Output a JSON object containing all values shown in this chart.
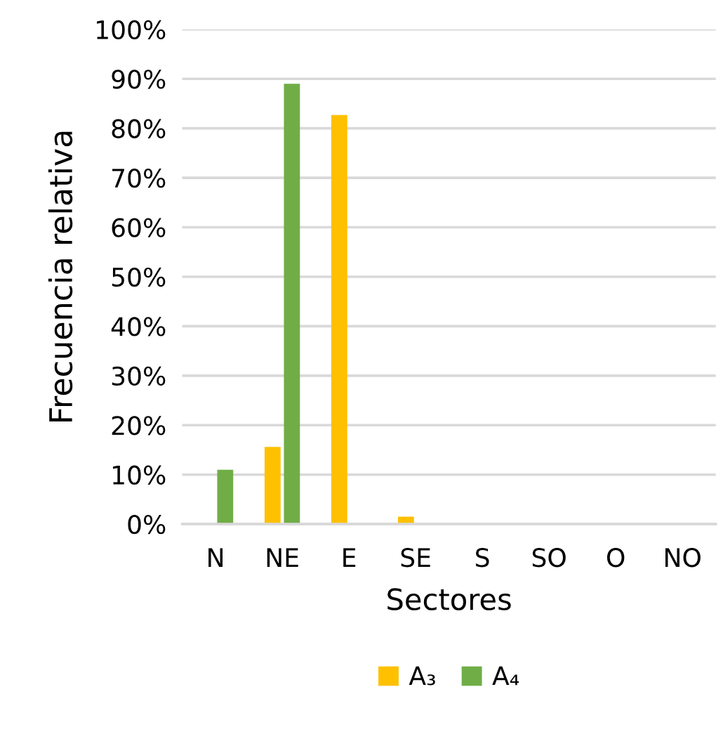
{
  "chart_data": {
    "type": "bar",
    "xlabel": "Sectores",
    "ylabel": "Frecuencia relativa",
    "categories": [
      "N",
      "NE",
      "E",
      "SE",
      "S",
      "SO",
      "O",
      "NO"
    ],
    "series": [
      {
        "name": "A₃",
        "color": "#ffc000",
        "values": [
          0,
          15.6,
          82.7,
          1.5,
          0,
          0,
          0,
          0
        ]
      },
      {
        "name": "A₄",
        "color": "#70ad47",
        "values": [
          11,
          89,
          0,
          0,
          0,
          0,
          0,
          0
        ]
      }
    ],
    "ylim": [
      0,
      100
    ],
    "yticks": [
      {
        "value": 0,
        "label": "0%"
      },
      {
        "value": 10,
        "label": "10%"
      },
      {
        "value": 20,
        "label": "20%"
      },
      {
        "value": 30,
        "label": "30%"
      },
      {
        "value": 40,
        "label": "40%"
      },
      {
        "value": 50,
        "label": "50%"
      },
      {
        "value": 60,
        "label": "60%"
      },
      {
        "value": 70,
        "label": "70%"
      },
      {
        "value": 80,
        "label": "80%"
      },
      {
        "value": 90,
        "label": "90%"
      },
      {
        "value": 100,
        "label": "100%"
      }
    ],
    "grid": "y",
    "legend": "bottom"
  }
}
